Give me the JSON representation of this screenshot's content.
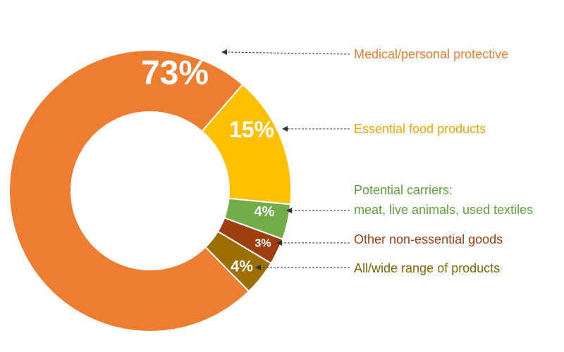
{
  "chart_data": {
    "type": "pie",
    "donut": true,
    "title": "",
    "slices": [
      {
        "label": "Medical/personal protective",
        "label_lines": [
          "Medical/personal protective"
        ],
        "value": 73,
        "value_label": "73%",
        "color": "#ED7D31",
        "text_color": "#ED7D31"
      },
      {
        "label": "Essential food products",
        "label_lines": [
          "Essential food products"
        ],
        "value": 15,
        "value_label": "15%",
        "color": "#FFC000",
        "text_color": "#F0A500"
      },
      {
        "label": "Potential carriers: meat, live animals, used textiles",
        "label_lines": [
          "Potential carriers:",
          "meat, live animals, used textiles"
        ],
        "value": 4,
        "value_label": "4%",
        "color": "#70AD47",
        "text_color": "#5FA13B"
      },
      {
        "label": "Other non-essential goods",
        "label_lines": [
          "Other non-essential goods"
        ],
        "value": 3,
        "value_label": "3%",
        "color": "#9E3E0E",
        "text_color": "#9E3E0E"
      },
      {
        "label": "All/wide range of products",
        "label_lines": [
          "All/wide range of products"
        ],
        "value": 4,
        "value_label": "4%",
        "color": "#9C6F00",
        "text_color": "#8A6400"
      }
    ]
  }
}
